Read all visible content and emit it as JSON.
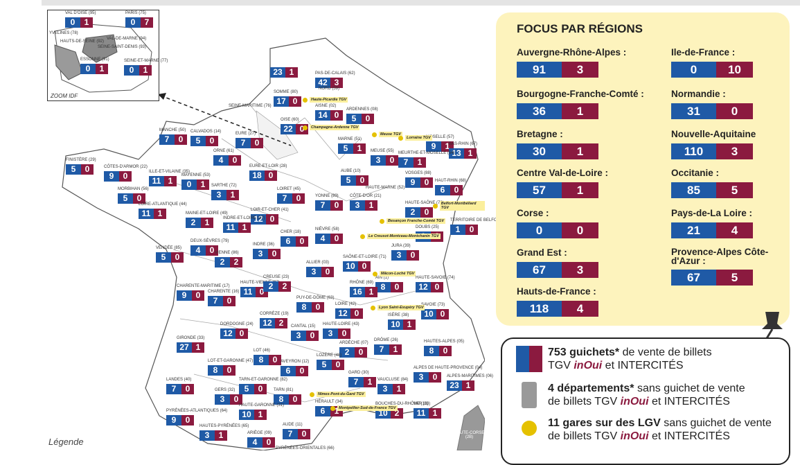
{
  "zoom": {
    "label": "ZOOM IDF",
    "depts": [
      {
        "name": "VAL D'OISE (95)",
        "blue": "0",
        "red": "1"
      },
      {
        "name": "PARIS (75)",
        "blue": "0",
        "red": "7"
      },
      {
        "name": "YVELINES (78)",
        "blue": "",
        "red": ""
      },
      {
        "name": "HAUTS-DE-SEINE (92)",
        "blue": "",
        "red": ""
      },
      {
        "name": "VAL-DE-MARNE (94)",
        "blue": "",
        "red": ""
      },
      {
        "name": "SEINE-SAINT-DENIS (93)",
        "blue": "",
        "red": ""
      },
      {
        "name": "ESSONNE (91)",
        "blue": "0",
        "red": "1"
      },
      {
        "name": "SEINE-ET-MARNE (77)",
        "blue": "0",
        "red": "1"
      }
    ]
  },
  "departments": [
    {
      "name": "PAS-DE-CALAIS (62)",
      "blue": "42",
      "red": "3"
    },
    {
      "name": "",
      "blue": "23",
      "red": "1"
    },
    {
      "name": "NORD (59)",
      "blue": "",
      "red": ""
    },
    {
      "name": "SOMME (80)",
      "blue": "17",
      "red": "0"
    },
    {
      "name": "AISNE (02)",
      "blue": "14",
      "red": "0"
    },
    {
      "name": "SEINE-MARITIME (76)",
      "blue": "",
      "red": ""
    },
    {
      "name": "OISE (60)",
      "blue": "22",
      "red": "0"
    },
    {
      "name": "ARDENNES (08)",
      "blue": "5",
      "red": "0"
    },
    {
      "name": "MANCHE (50)",
      "blue": "7",
      "red": "0"
    },
    {
      "name": "CALVADOS (14)",
      "blue": "5",
      "red": "0"
    },
    {
      "name": "EURE (27)",
      "blue": "7",
      "red": "0"
    },
    {
      "name": "MARNE (51)",
      "blue": "5",
      "red": "1"
    },
    {
      "name": "MOSELLE (57)",
      "blue": "9",
      "red": "1"
    },
    {
      "name": "BAS-RHIN (67)",
      "blue": "13",
      "red": "1"
    },
    {
      "name": "FINISTÈRE (29)",
      "blue": "5",
      "red": "0"
    },
    {
      "name": "CÔTES-D'ARMOR (22)",
      "blue": "9",
      "red": "0"
    },
    {
      "name": "ORNE (61)",
      "blue": "4",
      "red": "0"
    },
    {
      "name": "MEUSE (55)",
      "blue": "3",
      "red": "0"
    },
    {
      "name": "MEURTHE-ET-MOSELLE (54)",
      "blue": "7",
      "red": "1"
    },
    {
      "name": "EURE-ET-LOIR (28)",
      "blue": "18",
      "red": "0"
    },
    {
      "name": "ILLE-ET-VILAINE (35)",
      "blue": "11",
      "red": "1"
    },
    {
      "name": "MAYENNE (53)",
      "blue": "0",
      "red": "1"
    },
    {
      "name": "AUBE (10)",
      "blue": "5",
      "red": "0"
    },
    {
      "name": "VOSGES (88)",
      "blue": "9",
      "red": "0"
    },
    {
      "name": "MORBIHAN (56)",
      "blue": "5",
      "red": "0"
    },
    {
      "name": "SARTHE (72)",
      "blue": "3",
      "red": "1"
    },
    {
      "name": "LOIRET (45)",
      "blue": "7",
      "red": "0"
    },
    {
      "name": "YONNE (89)",
      "blue": "7",
      "red": "0"
    },
    {
      "name": "HAUTE-MARNE (52)",
      "blue": "",
      "red": ""
    },
    {
      "name": "HAUT-RHIN (68)",
      "blue": "6",
      "red": "0"
    },
    {
      "name": "HAUTE-SAÔNE (70)",
      "blue": "2",
      "red": "0"
    },
    {
      "name": "CÔTE-D'OR (21)",
      "blue": "3",
      "red": "1"
    },
    {
      "name": "LOIRE-ATLANTIQUE (44)",
      "blue": "11",
      "red": "1"
    },
    {
      "name": "MAINE-ET-LOIRE (49)",
      "blue": "2",
      "red": "1"
    },
    {
      "name": "LOIR-ET-CHER (41)",
      "blue": "12",
      "red": "0"
    },
    {
      "name": "INDRE-ET-LOIRE (37)",
      "blue": "11",
      "red": "1"
    },
    {
      "name": "TERRITOIRE DE BELFORT (90)",
      "blue": "1",
      "red": "0"
    },
    {
      "name": "CHER (18)",
      "blue": "6",
      "red": "0"
    },
    {
      "name": "NIÈVRE (58)",
      "blue": "4",
      "red": "0"
    },
    {
      "name": "DOUBS (25)",
      "blue": "6",
      "red": "0"
    },
    {
      "name": "VENDÉE (85)",
      "blue": "5",
      "red": "0"
    },
    {
      "name": "DEUX-SÈVRES (79)",
      "blue": "4",
      "red": "0"
    },
    {
      "name": "VIENNE (86)",
      "blue": "2",
      "red": "2"
    },
    {
      "name": "INDRE (36)",
      "blue": "3",
      "red": "0"
    },
    {
      "name": "JURA (39)",
      "blue": "3",
      "red": "0"
    },
    {
      "name": "SAÔNE-ET-LOIRE (71)",
      "blue": "10",
      "red": "0"
    },
    {
      "name": "ALLIER (03)",
      "blue": "3",
      "red": "0"
    },
    {
      "name": "AIN (1)",
      "blue": "8",
      "red": "0"
    },
    {
      "name": "CHARENTE-MARITIME (17)",
      "blue": "9",
      "red": "0"
    },
    {
      "name": "CHARENTE (16)",
      "blue": "7",
      "red": "0"
    },
    {
      "name": "HAUTE-VIENNE (87)",
      "blue": "11",
      "red": "0"
    },
    {
      "name": "CREUSE (23)",
      "blue": "2",
      "red": "2"
    },
    {
      "name": "RHÔNE (69)",
      "blue": "16",
      "red": "1"
    },
    {
      "name": "HAUTE-SAVOIE (74)",
      "blue": "12",
      "red": "0"
    },
    {
      "name": "PUY-DE-DÔME (63)",
      "blue": "8",
      "red": "0"
    },
    {
      "name": "LOIRE (42)",
      "blue": "12",
      "red": "0"
    },
    {
      "name": "SAVOIE (73)",
      "blue": "10",
      "red": "0"
    },
    {
      "name": "CORRÈZE (19)",
      "blue": "12",
      "red": "2"
    },
    {
      "name": "ISÈRE (38)",
      "blue": "10",
      "red": "1"
    },
    {
      "name": "DORDOGNE (24)",
      "blue": "12",
      "red": "0"
    },
    {
      "name": "CANTAL (15)",
      "blue": "3",
      "red": "0"
    },
    {
      "name": "HAUTE-LOIRE (43)",
      "blue": "3",
      "red": "0"
    },
    {
      "name": "GIRONDE (33)",
      "blue": "27",
      "red": "1"
    },
    {
      "name": "DRÔME (26)",
      "blue": "7",
      "red": "1"
    },
    {
      "name": "ARDÈCHE (07)",
      "blue": "2",
      "red": "0"
    },
    {
      "name": "HAUTES-ALPES (05)",
      "blue": "8",
      "red": "0"
    },
    {
      "name": "LOT (46)",
      "blue": "8",
      "red": "0"
    },
    {
      "name": "LOZÈRE (48)",
      "blue": "5",
      "red": "0"
    },
    {
      "name": "AVEYRON (12)",
      "blue": "6",
      "red": "0"
    },
    {
      "name": "LOT-ET-GARONNE (47)",
      "blue": "8",
      "red": "0"
    },
    {
      "name": "ALPES DE HAUTE-PROVENCE (04)",
      "blue": "3",
      "red": "0"
    },
    {
      "name": "LANDES (40)",
      "blue": "7",
      "red": "0"
    },
    {
      "name": "GARD (30)",
      "blue": "7",
      "red": "1"
    },
    {
      "name": "VAUCLUSE (84)",
      "blue": "3",
      "red": "1"
    },
    {
      "name": "TARN-ET-GARONNE (82)",
      "blue": "5",
      "red": "0"
    },
    {
      "name": "ALPES-MARITIMES (06)",
      "blue": "23",
      "red": "1"
    },
    {
      "name": "GERS (32)",
      "blue": "3",
      "red": "0"
    },
    {
      "name": "TARN (81)",
      "blue": "8",
      "red": "0"
    },
    {
      "name": "HÉRAULT (34)",
      "blue": "6",
      "red": "1"
    },
    {
      "name": "BOUCHES-DU-RHÔNE (13)",
      "blue": "10",
      "red": "2"
    },
    {
      "name": "VAR (83)",
      "blue": "11",
      "red": "1"
    },
    {
      "name": "PYRÉNÉES-ATLANTIQUES (64)",
      "blue": "9",
      "red": "0"
    },
    {
      "name": "HAUTE-GARONNE (31)",
      "blue": "10",
      "red": "1"
    },
    {
      "name": "AUDE (11)",
      "blue": "7",
      "red": "0"
    },
    {
      "name": "HAUTES-PYRÉNÉES (65)",
      "blue": "3",
      "red": "1"
    },
    {
      "name": "ARIÈGE (09)",
      "blue": "4",
      "red": "0"
    },
    {
      "name": "PYRÉNÉES-ORIENTALES (66)",
      "blue": "",
      "red": ""
    },
    {
      "name": "HAUTE-CORSE (2B)",
      "blue": "",
      "red": ""
    }
  ],
  "stations": [
    "Haute-Picardie TGV",
    "Champagne-Ardenne TGV",
    "Meuse TGV",
    "Lorraine TGV",
    "Belfort-Montbéliard TGV",
    "Besançon Franche-Comté TGV",
    "Le Creusot-Montceau-Montchanin TGV",
    "Mâcon-Loché TGV",
    "Lyon Saint-Exupéry TGV",
    "Nîmes-Pont-du-Gard TGV",
    "Montpellier-Sud-de-France TGV"
  ],
  "legend_word": "Légende",
  "focus": {
    "title": "FOCUS PAR RÉGIONS",
    "regions": [
      {
        "name": "Auvergne-Rhône-Alpes :",
        "blue": "91",
        "red": "3"
      },
      {
        "name": "Bourgogne-Franche-Comté :",
        "blue": "36",
        "red": "1"
      },
      {
        "name": "Bretagne :",
        "blue": "30",
        "red": "1"
      },
      {
        "name": "Centre Val-de-Loire :",
        "blue": "57",
        "red": "1"
      },
      {
        "name": "Corse :",
        "blue": "0",
        "red": "0"
      },
      {
        "name": "Grand Est :",
        "blue": "67",
        "red": "3"
      },
      {
        "name": "Hauts-de-France :",
        "blue": "118",
        "red": "4"
      },
      {
        "name": "Ile-de-France :",
        "blue": "0",
        "red": "10"
      },
      {
        "name": "Normandie :",
        "blue": "31",
        "red": "0"
      },
      {
        "name": "Nouvelle-Aquitaine",
        "blue": "110",
        "red": "3"
      },
      {
        "name": "Occitanie :",
        "blue": "85",
        "red": "5"
      },
      {
        "name": "Pays-de-La Loire :",
        "blue": "21",
        "red": "4"
      },
      {
        "name": "Provence-Alpes Côte-d'Azur :",
        "blue": "67",
        "red": "5"
      }
    ]
  },
  "key": {
    "row1": {
      "bold": "753 guichets*",
      "text1": " de vente de billets",
      "text2": "TGV ",
      "brand": "inOui",
      "text3": " et INTERCITÉS"
    },
    "row2": {
      "bold": "4 départements*",
      "text1": " sans guichet de vente",
      "text2": "de billets TGV ",
      "brand": "inOui",
      "text3": " et INTERCITÉS"
    },
    "row3": {
      "bold": "11 gares sur des LGV",
      "text1": " sans guichet de vente",
      "text2": "de billets TGV ",
      "brand": "inOui",
      "text3": " et INTERCITÉS"
    }
  },
  "colors": {
    "blue": "#1f5aa6",
    "red": "#8b1a3f",
    "station": "#e5c100",
    "panel": "#fdf3bd"
  }
}
